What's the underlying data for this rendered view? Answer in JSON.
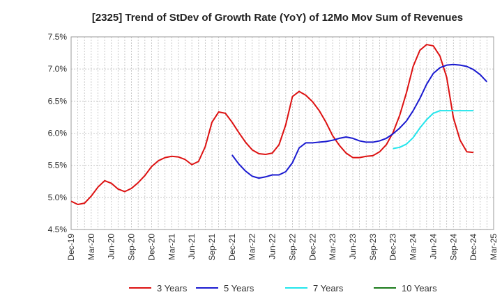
{
  "chart_data": {
    "type": "line",
    "title": "[2325]  Trend of StDev of Growth Rate (YoY) of 12Mo Mov Sum of Revenues",
    "xlabel": "",
    "ylabel": "",
    "ylim": [
      4.5,
      7.5
    ],
    "y_ticks": [
      "4.5%",
      "5.0%",
      "5.5%",
      "6.0%",
      "6.5%",
      "7.0%",
      "7.5%"
    ],
    "x_ticks": [
      "Dec-19",
      "Mar-20",
      "Jun-20",
      "Sep-20",
      "Dec-20",
      "Mar-21",
      "Jun-21",
      "Sep-21",
      "Dec-21",
      "Mar-22",
      "Jun-22",
      "Sep-22",
      "Dec-22",
      "Mar-23",
      "Jun-23",
      "Sep-23",
      "Dec-23",
      "Mar-24",
      "Jun-24",
      "Sep-24",
      "Dec-24",
      "Mar-25"
    ],
    "x_start": "Dec-19",
    "x_months": 63,
    "grid": true,
    "legend_position": "bottom",
    "series": [
      {
        "name": "3 Years",
        "color": "#dd1111",
        "start_index": 0,
        "values": [
          4.94,
          4.89,
          4.91,
          5.02,
          5.16,
          5.26,
          5.22,
          5.13,
          5.09,
          5.14,
          5.23,
          5.34,
          5.48,
          5.57,
          5.62,
          5.64,
          5.63,
          5.59,
          5.51,
          5.56,
          5.79,
          6.17,
          6.33,
          6.31,
          6.17,
          6.01,
          5.86,
          5.74,
          5.68,
          5.67,
          5.69,
          5.82,
          6.13,
          6.57,
          6.65,
          6.59,
          6.49,
          6.35,
          6.17,
          5.96,
          5.81,
          5.69,
          5.62,
          5.62,
          5.64,
          5.65,
          5.71,
          5.82,
          6.01,
          6.28,
          6.63,
          7.04,
          7.29,
          7.38,
          7.36,
          7.2,
          6.87,
          6.24,
          5.89,
          5.71,
          5.7
        ]
      },
      {
        "name": "5 Years",
        "color": "#1a1ad0",
        "start_index": 24,
        "values": [
          5.66,
          5.52,
          5.41,
          5.33,
          5.3,
          5.32,
          5.35,
          5.35,
          5.4,
          5.54,
          5.77,
          5.85,
          5.85,
          5.86,
          5.87,
          5.89,
          5.92,
          5.94,
          5.92,
          5.88,
          5.86,
          5.86,
          5.88,
          5.92,
          5.99,
          6.08,
          6.19,
          6.35,
          6.54,
          6.76,
          6.93,
          7.02,
          7.06,
          7.07,
          7.06,
          7.04,
          6.99,
          6.91,
          6.8
        ]
      },
      {
        "name": "7 Years",
        "color": "#22e5ec",
        "start_index": 48,
        "values": [
          5.76,
          5.78,
          5.83,
          5.93,
          6.08,
          6.21,
          6.31,
          6.35,
          6.35,
          6.35,
          6.35,
          6.35,
          6.35
        ]
      },
      {
        "name": "10 Years",
        "color": "#1a7a1a",
        "start_index": 61,
        "values": []
      }
    ]
  }
}
